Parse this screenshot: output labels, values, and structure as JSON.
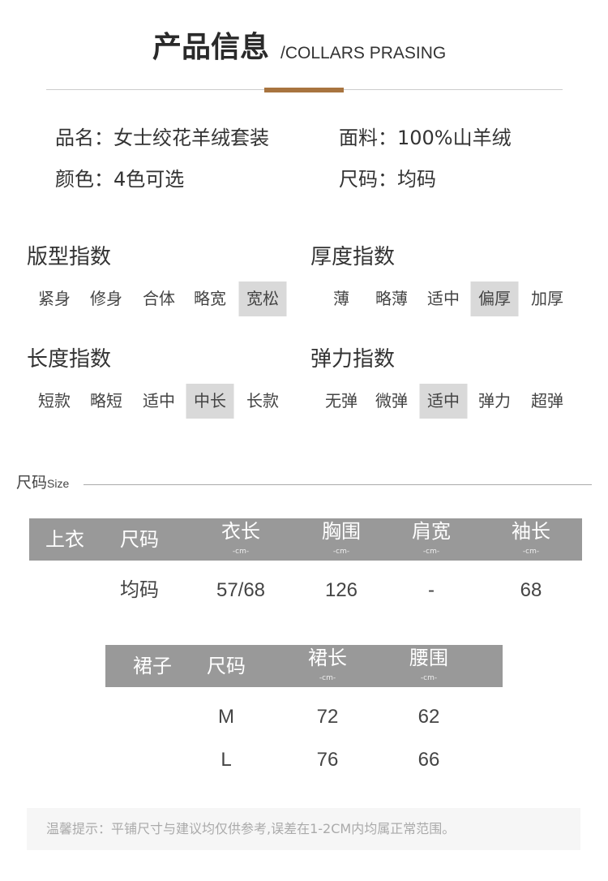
{
  "header": {
    "title_cn": "产品信息",
    "title_en": "/COLLARS PRASING",
    "accent_color": "#a8743f"
  },
  "info": [
    {
      "text": "品名：女士绞花羊绒套装"
    },
    {
      "text": "面料：100%山羊绒"
    },
    {
      "text": "颜色：4色可选"
    },
    {
      "text": "尺码：均码"
    }
  ],
  "indices": [
    {
      "title": "版型指数",
      "options": [
        "紧身",
        "修身",
        "合体",
        "略宽",
        "宽松"
      ],
      "selected": 4
    },
    {
      "title": "厚度指数",
      "options": [
        "薄",
        "略薄",
        "适中",
        "偏厚",
        "加厚"
      ],
      "selected": 3
    },
    {
      "title": "长度指数",
      "options": [
        "短款",
        "略短",
        "适中",
        "中长",
        "长款"
      ],
      "selected": 3
    },
    {
      "title": "弹力指数",
      "options": [
        "无弹",
        "微弹",
        "适中",
        "弹力",
        "超弹"
      ],
      "selected": 2
    }
  ],
  "size": {
    "label": "尺码",
    "label_en": "Size"
  },
  "top_table": {
    "headers": [
      {
        "label": "上衣",
        "unit": ""
      },
      {
        "label": "尺码",
        "unit": ""
      },
      {
        "label": "衣长",
        "unit": "-cm-"
      },
      {
        "label": "胸围",
        "unit": "-cm-"
      },
      {
        "label": "肩宽",
        "unit": "-cm-"
      },
      {
        "label": "袖长",
        "unit": "-cm-"
      }
    ],
    "rows": [
      [
        "",
        "均码",
        "57/68",
        "126",
        "-",
        "68"
      ]
    ]
  },
  "skirt_table": {
    "headers": [
      {
        "label": "裙子",
        "unit": ""
      },
      {
        "label": "尺码",
        "unit": ""
      },
      {
        "label": "裙长",
        "unit": "-cm-"
      },
      {
        "label": "腰围",
        "unit": "-cm-"
      }
    ],
    "rows": [
      [
        "",
        "M",
        "72",
        "62"
      ],
      [
        "",
        "L",
        "76",
        "66"
      ]
    ]
  },
  "note": "温馨提示：平铺尺寸与建议均仅供参考,误差在1-2CM内均属正常范围。"
}
